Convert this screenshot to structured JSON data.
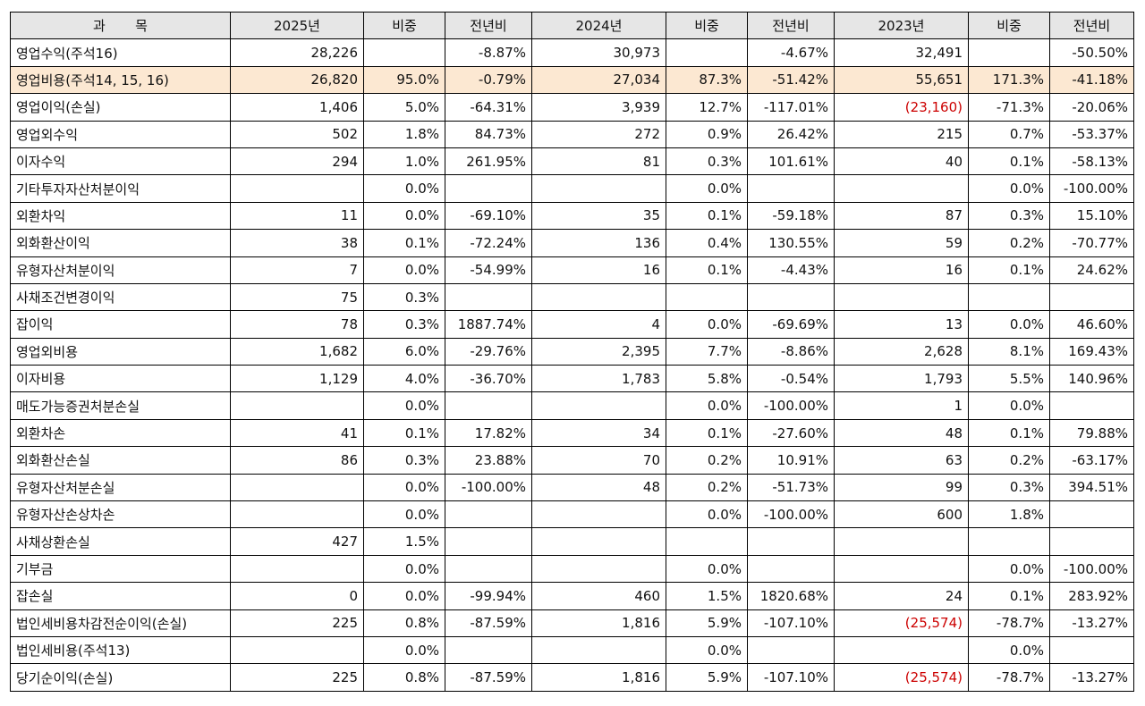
{
  "header": [
    "과       목",
    "2025년",
    "비중",
    "전년비",
    "2024년",
    "비중",
    "전년비",
    "2023년",
    "비중",
    "전년비"
  ],
  "colors": {
    "header_bg": "#e6e6e6",
    "highlight_bg": "#fce8d2",
    "negative_text": "#cc0000"
  },
  "rows": [
    {
      "label": "영업수익(주석16)",
      "cells": [
        "28,226",
        "",
        "-8.87%",
        "30,973",
        "",
        "-4.67%",
        "32,491",
        "",
        "-50.50%"
      ]
    },
    {
      "label": "영업비용(주석14, 15, 16)",
      "highlight": true,
      "cells": [
        "26,820",
        "95.0%",
        "-0.79%",
        "27,034",
        "87.3%",
        "-51.42%",
        "55,651",
        "171.3%",
        "-41.18%"
      ]
    },
    {
      "label": "영업이익(손실)",
      "neg": [
        6
      ],
      "cells": [
        "1,406",
        "5.0%",
        "-64.31%",
        "3,939",
        "12.7%",
        "-117.01%",
        "(23,160)",
        "-71.3%",
        "-20.06%"
      ]
    },
    {
      "label": "영업외수익",
      "cells": [
        "502",
        "1.8%",
        "84.73%",
        "272",
        "0.9%",
        "26.42%",
        "215",
        "0.7%",
        "-53.37%"
      ]
    },
    {
      "label": "이자수익",
      "cells": [
        "294",
        "1.0%",
        "261.95%",
        "81",
        "0.3%",
        "101.61%",
        "40",
        "0.1%",
        "-58.13%"
      ]
    },
    {
      "label": "기타투자자산처분이익",
      "cells": [
        "",
        "0.0%",
        "",
        "",
        "0.0%",
        "",
        "",
        "0.0%",
        "-100.00%"
      ]
    },
    {
      "label": "외환차익",
      "cells": [
        "11",
        "0.0%",
        "-69.10%",
        "35",
        "0.1%",
        "-59.18%",
        "87",
        "0.3%",
        "15.10%"
      ]
    },
    {
      "label": "외화환산이익",
      "cells": [
        "38",
        "0.1%",
        "-72.24%",
        "136",
        "0.4%",
        "130.55%",
        "59",
        "0.2%",
        "-70.77%"
      ]
    },
    {
      "label": "유형자산처분이익",
      "cells": [
        "7",
        "0.0%",
        "-54.99%",
        "16",
        "0.1%",
        "-4.43%",
        "16",
        "0.1%",
        "24.62%"
      ]
    },
    {
      "label": "사채조건변경이익",
      "cells": [
        "75",
        "0.3%",
        "",
        "",
        "",
        "",
        "",
        "",
        ""
      ]
    },
    {
      "label": "잡이익",
      "cells": [
        "78",
        "0.3%",
        "1887.74%",
        "4",
        "0.0%",
        "-69.69%",
        "13",
        "0.0%",
        "46.60%"
      ]
    },
    {
      "label": "영업외비용",
      "cells": [
        "1,682",
        "6.0%",
        "-29.76%",
        "2,395",
        "7.7%",
        "-8.86%",
        "2,628",
        "8.1%",
        "169.43%"
      ]
    },
    {
      "label": "이자비용",
      "cells": [
        "1,129",
        "4.0%",
        "-36.70%",
        "1,783",
        "5.8%",
        "-0.54%",
        "1,793",
        "5.5%",
        "140.96%"
      ]
    },
    {
      "label": "매도가능증권처분손실",
      "cells": [
        "",
        "0.0%",
        "",
        "",
        "0.0%",
        "-100.00%",
        "1",
        "0.0%",
        ""
      ]
    },
    {
      "label": "외환차손",
      "cells": [
        "41",
        "0.1%",
        "17.82%",
        "34",
        "0.1%",
        "-27.60%",
        "48",
        "0.1%",
        "79.88%"
      ]
    },
    {
      "label": "외화환산손실",
      "cells": [
        "86",
        "0.3%",
        "23.88%",
        "70",
        "0.2%",
        "10.91%",
        "63",
        "0.2%",
        "-63.17%"
      ]
    },
    {
      "label": "유형자산처분손실",
      "cells": [
        "",
        "0.0%",
        "-100.00%",
        "48",
        "0.2%",
        "-51.73%",
        "99",
        "0.3%",
        "394.51%"
      ]
    },
    {
      "label": "유형자산손상차손",
      "cells": [
        "",
        "0.0%",
        "",
        "",
        "0.0%",
        "-100.00%",
        "600",
        "1.8%",
        ""
      ]
    },
    {
      "label": "사채상환손실",
      "cells": [
        "427",
        "1.5%",
        "",
        "",
        "",
        "",
        "",
        "",
        ""
      ]
    },
    {
      "label": "기부금",
      "cells": [
        "",
        "0.0%",
        "",
        "",
        "0.0%",
        "",
        "",
        "0.0%",
        "-100.00%"
      ]
    },
    {
      "label": "잡손실",
      "cells": [
        "0",
        "0.0%",
        "-99.94%",
        "460",
        "1.5%",
        "1820.68%",
        "24",
        "0.1%",
        "283.92%"
      ]
    },
    {
      "label": "법인세비용차감전순이익(손실)",
      "neg": [
        6
      ],
      "cells": [
        "225",
        "0.8%",
        "-87.59%",
        "1,816",
        "5.9%",
        "-107.10%",
        "(25,574)",
        "-78.7%",
        "-13.27%"
      ]
    },
    {
      "label": "법인세비용(주석13)",
      "cells": [
        "",
        "0.0%",
        "",
        "",
        "0.0%",
        "",
        "",
        "0.0%",
        ""
      ]
    },
    {
      "label": "당기순이익(손실)",
      "neg": [
        6
      ],
      "cells": [
        "225",
        "0.8%",
        "-87.59%",
        "1,816",
        "5.9%",
        "-107.10%",
        "(25,574)",
        "-78.7%",
        "-13.27%"
      ]
    }
  ]
}
